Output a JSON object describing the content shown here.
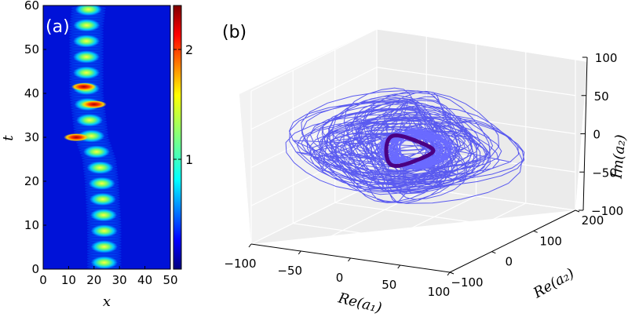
{
  "panel_a": {
    "label": "(a)",
    "chart_data": {
      "type": "heatmap",
      "xlabel": "x",
      "ylabel": "t",
      "xlim": [
        0,
        50
      ],
      "ylim": [
        0,
        60
      ],
      "x_ticks": [
        0,
        10,
        20,
        30,
        40,
        50
      ],
      "y_ticks": [
        0,
        10,
        20,
        30,
        40,
        50,
        60
      ],
      "colorbar": {
        "ticks": [
          1,
          2
        ],
        "range": [
          0,
          2.4
        ],
        "colormap": "jet"
      },
      "description_features": {
        "pulse_centers_x_by_t": [
          [
            0,
            24
          ],
          [
            10,
            24
          ],
          [
            20,
            23
          ],
          [
            25,
            22
          ],
          [
            30,
            19
          ],
          [
            35,
            18
          ],
          [
            40,
            17
          ],
          [
            45,
            17
          ],
          [
            50,
            17
          ],
          [
            55,
            17
          ],
          [
            60,
            18
          ]
        ],
        "pulse_period_t": 3.6,
        "peak_events": [
          {
            "x": 16,
            "t": 41.5
          },
          {
            "x": 13,
            "t": 30
          },
          {
            "x": 20,
            "t": 37.5
          }
        ]
      }
    }
  },
  "panel_b": {
    "label": "(b)",
    "chart_data": {
      "type": "line",
      "projection": "3d",
      "xlabel": "Re(a₁)",
      "ylabel": "Re(a₂)",
      "zlabel": "Im(a₂)",
      "xlim": [
        -100,
        100
      ],
      "ylim": [
        -100,
        200
      ],
      "zlim": [
        -100,
        100
      ],
      "x_ticks": [
        "−100",
        "−50",
        "0",
        "50",
        "100"
      ],
      "y_ticks": [
        "−100",
        "0",
        "100",
        "200"
      ],
      "z_ticks": [
        "−100",
        "−50",
        "0",
        "50",
        "100"
      ],
      "series": [
        {
          "color": "#4a4af0",
          "kind": "chaotic trajectory"
        },
        {
          "color": "#4b0082",
          "kind": "limit cycle"
        }
      ],
      "grid": true
    }
  },
  "colors": {
    "trajectory": "#4a4af0",
    "cycle": "#4b0082",
    "pane": "#eeeeee"
  }
}
